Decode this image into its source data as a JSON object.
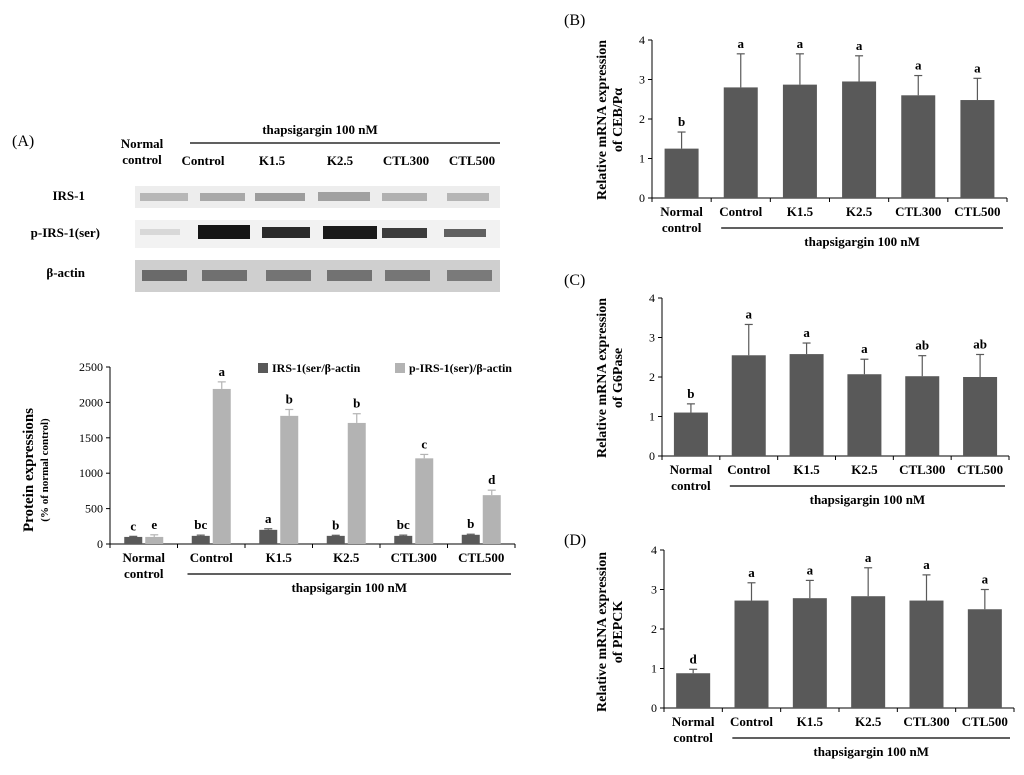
{
  "panel_a": {
    "label": "(A)",
    "blot": {
      "treatment_label": "thapsigargin 100 nM",
      "normal_line1": "Normal",
      "normal_line2": "control",
      "lanes": [
        "Control",
        "K1.5",
        "K2.5",
        "CTL300",
        "CTL500"
      ],
      "rows": [
        "IRS-1",
        "p-IRS-1(ser)",
        "β-actin"
      ]
    }
  },
  "chart_data": [
    {
      "panel": "A",
      "type": "bar",
      "title": "",
      "ylabel": "Protein expressions",
      "ylabel_sub": "(% of normal control)",
      "xlabel": "thapsigargin 100 nM",
      "ylim": [
        0,
        2500
      ],
      "yticks": [
        0,
        500,
        1000,
        1500,
        2000,
        2500
      ],
      "categories": [
        "Normal control",
        "Control",
        "K1.5",
        "K2.5",
        "CTL300",
        "CTL500"
      ],
      "series": [
        {
          "name": "IRS-1(ser/β-actin",
          "color": "#595959",
          "values": [
            100,
            115,
            200,
            115,
            115,
            130
          ],
          "errors": [
            8,
            10,
            15,
            8,
            10,
            8
          ],
          "letters": [
            "c",
            "bc",
            "a",
            "b",
            "bc",
            "b"
          ]
        },
        {
          "name": "p-IRS-1(ser)/β-actin",
          "color": "#b3b3b3",
          "values": [
            100,
            2190,
            1810,
            1710,
            1210,
            690
          ],
          "errors": [
            30,
            100,
            90,
            130,
            55,
            70
          ],
          "letters": [
            "e",
            "a",
            "b",
            "b",
            "c",
            "d"
          ]
        }
      ],
      "grid": false,
      "legend": "top"
    },
    {
      "panel": "B",
      "label": "(B)",
      "type": "bar",
      "title": "",
      "ylabel": "Relative mRNA expression of CEB/Pα",
      "ylabel_line1": "Relative mRNA expression",
      "ylabel_line2": "of CEB/Pα",
      "xlabel": "thapsigargin 100 nM",
      "ylim": [
        0,
        4
      ],
      "yticks": [
        0,
        1,
        2,
        3,
        4
      ],
      "categories": [
        "Normal control",
        "Control",
        "K1.5",
        "K2.5",
        "CTL300",
        "CTL500"
      ],
      "series": [
        {
          "color": "#595959",
          "values": [
            1.25,
            2.8,
            2.87,
            2.95,
            2.6,
            2.48
          ],
          "errors": [
            0.42,
            0.85,
            0.78,
            0.65,
            0.5,
            0.55
          ],
          "letters": [
            "b",
            "a",
            "a",
            "a",
            "a",
            "a"
          ]
        }
      ],
      "grid": false
    },
    {
      "panel": "C",
      "label": "(C)",
      "type": "bar",
      "title": "",
      "ylabel": "Relative mRNA expression of G6Pase",
      "ylabel_line1": "Relative mRNA expression",
      "ylabel_line2": "of G6Pase",
      "xlabel": "thapsigargin 100 nM",
      "ylim": [
        0,
        4
      ],
      "yticks": [
        0,
        1,
        2,
        3,
        4
      ],
      "categories": [
        "Normal control",
        "Control",
        "K1.5",
        "K2.5",
        "CTL300",
        "CTL500"
      ],
      "series": [
        {
          "color": "#595959",
          "values": [
            1.1,
            2.55,
            2.58,
            2.07,
            2.02,
            2.0
          ],
          "errors": [
            0.22,
            0.78,
            0.28,
            0.38,
            0.52,
            0.57
          ],
          "letters": [
            "b",
            "a",
            "a",
            "a",
            "ab",
            "ab"
          ]
        }
      ],
      "grid": false
    },
    {
      "panel": "D",
      "label": "(D)",
      "type": "bar",
      "title": "",
      "ylabel": "Relative mRNA expression of PEPCK",
      "ylabel_line1": "Relative mRNA expression",
      "ylabel_line2": "of PEPCK",
      "xlabel": "thapsigargin 100 nM",
      "ylim": [
        0,
        4
      ],
      "yticks": [
        0,
        1,
        2,
        3,
        4
      ],
      "categories": [
        "Normal control",
        "Control",
        "K1.5",
        "K2.5",
        "CTL300",
        "CTL500"
      ],
      "series": [
        {
          "color": "#595959",
          "values": [
            0.88,
            2.72,
            2.78,
            2.83,
            2.72,
            2.5
          ],
          "errors": [
            0.1,
            0.45,
            0.45,
            0.72,
            0.65,
            0.5
          ],
          "letters": [
            "d",
            "a",
            "a",
            "a",
            "a",
            "a"
          ]
        }
      ],
      "grid": false
    }
  ]
}
